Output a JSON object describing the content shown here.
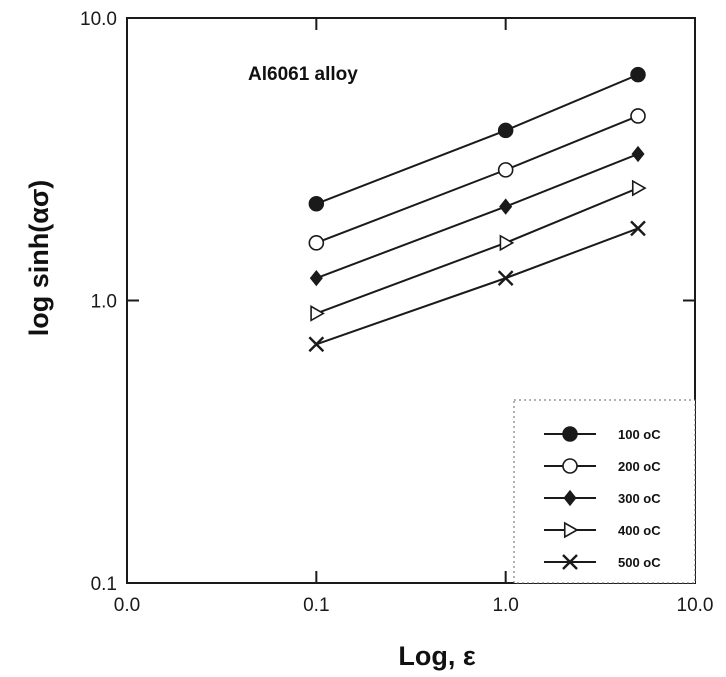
{
  "chart_data": {
    "type": "line",
    "xlabel": "Log, ε",
    "ylabel": "log sinh(ασ)",
    "xscale": "log",
    "yscale": "log",
    "xlim": [
      0.01,
      10
    ],
    "ylim": [
      0.1,
      10
    ],
    "x_ticks": [
      "0.0",
      "0.1",
      "1.0",
      "10.0"
    ],
    "y_ticks": [
      "0.1",
      "1.0",
      "10.0"
    ],
    "grid": false,
    "legend_position": "bottom-right",
    "annotation": "Al6061 alloy",
    "x": [
      0.1,
      1.0,
      5.0
    ],
    "series": [
      {
        "name": "100 oC",
        "marker": "filled-circle",
        "values": [
          2.2,
          4.0,
          6.3
        ]
      },
      {
        "name": "200 oC",
        "marker": "open-circle",
        "values": [
          1.6,
          2.9,
          4.5
        ]
      },
      {
        "name": "300 oC",
        "marker": "filled-diamond",
        "values": [
          1.2,
          2.15,
          3.3
        ]
      },
      {
        "name": "400 oC",
        "marker": "open-triangle",
        "values": [
          0.9,
          1.6,
          2.5
        ]
      },
      {
        "name": "500 oC",
        "marker": "x",
        "values": [
          0.7,
          1.2,
          1.8
        ]
      }
    ],
    "colors": {
      "line": "#1a1a1a",
      "background": "#ffffff"
    }
  }
}
